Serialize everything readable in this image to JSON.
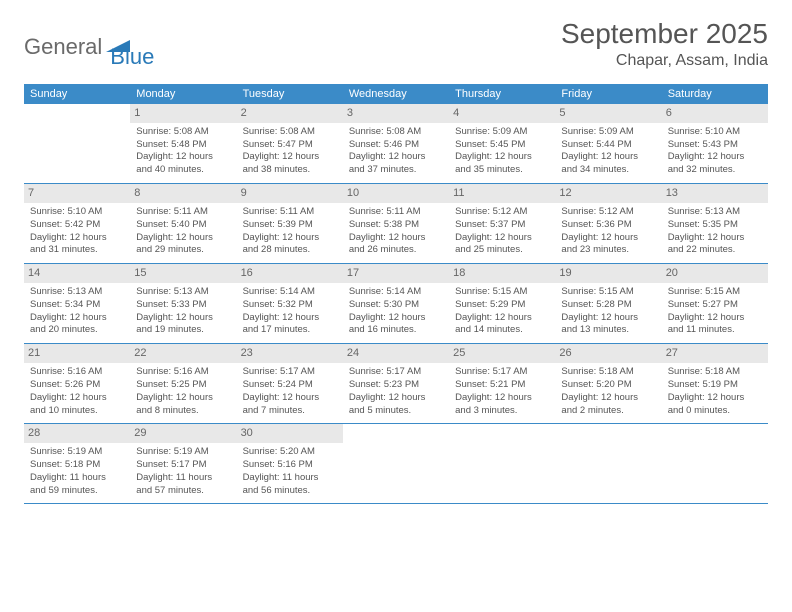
{
  "logo": {
    "text1": "General",
    "text2": "Blue",
    "accent_color": "#2a7ab8"
  },
  "title": "September 2025",
  "location": "Chapar, Assam, India",
  "colors": {
    "header_bg": "#3b8bc8",
    "header_text": "#ffffff",
    "daynum_bg": "#e8e8e8",
    "row_border": "#3b8bc8",
    "body_text": "#555555"
  },
  "weekdays": [
    "Sunday",
    "Monday",
    "Tuesday",
    "Wednesday",
    "Thursday",
    "Friday",
    "Saturday"
  ],
  "weeks": [
    [
      {
        "empty": true
      },
      {
        "num": "1",
        "sunrise": "Sunrise: 5:08 AM",
        "sunset": "Sunset: 5:48 PM",
        "daylight": "Daylight: 12 hours and 40 minutes."
      },
      {
        "num": "2",
        "sunrise": "Sunrise: 5:08 AM",
        "sunset": "Sunset: 5:47 PM",
        "daylight": "Daylight: 12 hours and 38 minutes."
      },
      {
        "num": "3",
        "sunrise": "Sunrise: 5:08 AM",
        "sunset": "Sunset: 5:46 PM",
        "daylight": "Daylight: 12 hours and 37 minutes."
      },
      {
        "num": "4",
        "sunrise": "Sunrise: 5:09 AM",
        "sunset": "Sunset: 5:45 PM",
        "daylight": "Daylight: 12 hours and 35 minutes."
      },
      {
        "num": "5",
        "sunrise": "Sunrise: 5:09 AM",
        "sunset": "Sunset: 5:44 PM",
        "daylight": "Daylight: 12 hours and 34 minutes."
      },
      {
        "num": "6",
        "sunrise": "Sunrise: 5:10 AM",
        "sunset": "Sunset: 5:43 PM",
        "daylight": "Daylight: 12 hours and 32 minutes."
      }
    ],
    [
      {
        "num": "7",
        "sunrise": "Sunrise: 5:10 AM",
        "sunset": "Sunset: 5:42 PM",
        "daylight": "Daylight: 12 hours and 31 minutes."
      },
      {
        "num": "8",
        "sunrise": "Sunrise: 5:11 AM",
        "sunset": "Sunset: 5:40 PM",
        "daylight": "Daylight: 12 hours and 29 minutes."
      },
      {
        "num": "9",
        "sunrise": "Sunrise: 5:11 AM",
        "sunset": "Sunset: 5:39 PM",
        "daylight": "Daylight: 12 hours and 28 minutes."
      },
      {
        "num": "10",
        "sunrise": "Sunrise: 5:11 AM",
        "sunset": "Sunset: 5:38 PM",
        "daylight": "Daylight: 12 hours and 26 minutes."
      },
      {
        "num": "11",
        "sunrise": "Sunrise: 5:12 AM",
        "sunset": "Sunset: 5:37 PM",
        "daylight": "Daylight: 12 hours and 25 minutes."
      },
      {
        "num": "12",
        "sunrise": "Sunrise: 5:12 AM",
        "sunset": "Sunset: 5:36 PM",
        "daylight": "Daylight: 12 hours and 23 minutes."
      },
      {
        "num": "13",
        "sunrise": "Sunrise: 5:13 AM",
        "sunset": "Sunset: 5:35 PM",
        "daylight": "Daylight: 12 hours and 22 minutes."
      }
    ],
    [
      {
        "num": "14",
        "sunrise": "Sunrise: 5:13 AM",
        "sunset": "Sunset: 5:34 PM",
        "daylight": "Daylight: 12 hours and 20 minutes."
      },
      {
        "num": "15",
        "sunrise": "Sunrise: 5:13 AM",
        "sunset": "Sunset: 5:33 PM",
        "daylight": "Daylight: 12 hours and 19 minutes."
      },
      {
        "num": "16",
        "sunrise": "Sunrise: 5:14 AM",
        "sunset": "Sunset: 5:32 PM",
        "daylight": "Daylight: 12 hours and 17 minutes."
      },
      {
        "num": "17",
        "sunrise": "Sunrise: 5:14 AM",
        "sunset": "Sunset: 5:30 PM",
        "daylight": "Daylight: 12 hours and 16 minutes."
      },
      {
        "num": "18",
        "sunrise": "Sunrise: 5:15 AM",
        "sunset": "Sunset: 5:29 PM",
        "daylight": "Daylight: 12 hours and 14 minutes."
      },
      {
        "num": "19",
        "sunrise": "Sunrise: 5:15 AM",
        "sunset": "Sunset: 5:28 PM",
        "daylight": "Daylight: 12 hours and 13 minutes."
      },
      {
        "num": "20",
        "sunrise": "Sunrise: 5:15 AM",
        "sunset": "Sunset: 5:27 PM",
        "daylight": "Daylight: 12 hours and 11 minutes."
      }
    ],
    [
      {
        "num": "21",
        "sunrise": "Sunrise: 5:16 AM",
        "sunset": "Sunset: 5:26 PM",
        "daylight": "Daylight: 12 hours and 10 minutes."
      },
      {
        "num": "22",
        "sunrise": "Sunrise: 5:16 AM",
        "sunset": "Sunset: 5:25 PM",
        "daylight": "Daylight: 12 hours and 8 minutes."
      },
      {
        "num": "23",
        "sunrise": "Sunrise: 5:17 AM",
        "sunset": "Sunset: 5:24 PM",
        "daylight": "Daylight: 12 hours and 7 minutes."
      },
      {
        "num": "24",
        "sunrise": "Sunrise: 5:17 AM",
        "sunset": "Sunset: 5:23 PM",
        "daylight": "Daylight: 12 hours and 5 minutes."
      },
      {
        "num": "25",
        "sunrise": "Sunrise: 5:17 AM",
        "sunset": "Sunset: 5:21 PM",
        "daylight": "Daylight: 12 hours and 3 minutes."
      },
      {
        "num": "26",
        "sunrise": "Sunrise: 5:18 AM",
        "sunset": "Sunset: 5:20 PM",
        "daylight": "Daylight: 12 hours and 2 minutes."
      },
      {
        "num": "27",
        "sunrise": "Sunrise: 5:18 AM",
        "sunset": "Sunset: 5:19 PM",
        "daylight": "Daylight: 12 hours and 0 minutes."
      }
    ],
    [
      {
        "num": "28",
        "sunrise": "Sunrise: 5:19 AM",
        "sunset": "Sunset: 5:18 PM",
        "daylight": "Daylight: 11 hours and 59 minutes."
      },
      {
        "num": "29",
        "sunrise": "Sunrise: 5:19 AM",
        "sunset": "Sunset: 5:17 PM",
        "daylight": "Daylight: 11 hours and 57 minutes."
      },
      {
        "num": "30",
        "sunrise": "Sunrise: 5:20 AM",
        "sunset": "Sunset: 5:16 PM",
        "daylight": "Daylight: 11 hours and 56 minutes."
      },
      {
        "empty": true
      },
      {
        "empty": true
      },
      {
        "empty": true
      },
      {
        "empty": true
      }
    ]
  ]
}
